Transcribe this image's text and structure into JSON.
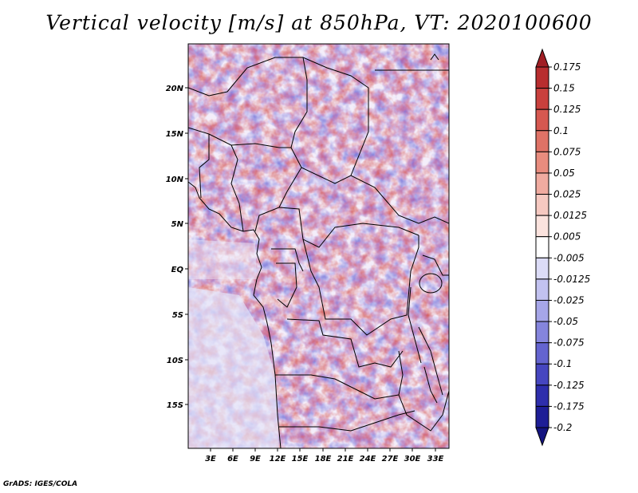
{
  "title": "Vertical velocity [m/s] at 850hPa, VT: 2020100600",
  "footer": "GrADS: IGES/COLA",
  "map": {
    "lat_labels": [
      "20N",
      "15N",
      "10N",
      "5N",
      "EQ",
      "5S",
      "10S",
      "15S"
    ],
    "lon_labels": [
      "3E",
      "6E",
      "9E",
      "12E",
      "15E",
      "18E",
      "21E",
      "24E",
      "27E",
      "30E",
      "33E"
    ],
    "extent": {
      "lon_min": 0,
      "lon_max": 34.5,
      "lat_min": -19.5,
      "lat_max": 24.5
    }
  },
  "colorbar": {
    "levels": [
      "0.175",
      "0.15",
      "0.125",
      "0.1",
      "0.075",
      "0.05",
      "0.025",
      "0.0125",
      "0.005",
      "-0.005",
      "-0.0125",
      "-0.025",
      "-0.05",
      "-0.075",
      "-0.1",
      "-0.125",
      "-0.175",
      "-0.2"
    ],
    "colors": [
      "#a01e24",
      "#b82d2f",
      "#c9403d",
      "#d65850",
      "#df7266",
      "#e88c7e",
      "#f0aba0",
      "#f6c9c1",
      "#fbe3de",
      "#ffffff",
      "#dcdcf7",
      "#c2c2f0",
      "#a6a6e8",
      "#8585dd",
      "#6464d0",
      "#4646c0",
      "#2e2eac",
      "#1e1e96",
      "#141480"
    ],
    "color_names": [
      "dark-red",
      "red",
      "red",
      "red",
      "salmon",
      "salmon",
      "light-red",
      "pink",
      "pale-pink",
      "white",
      "pale-lavender",
      "lavender",
      "light-blue",
      "blue",
      "blue",
      "dark-blue",
      "dark-blue",
      "navy",
      "navy"
    ]
  }
}
